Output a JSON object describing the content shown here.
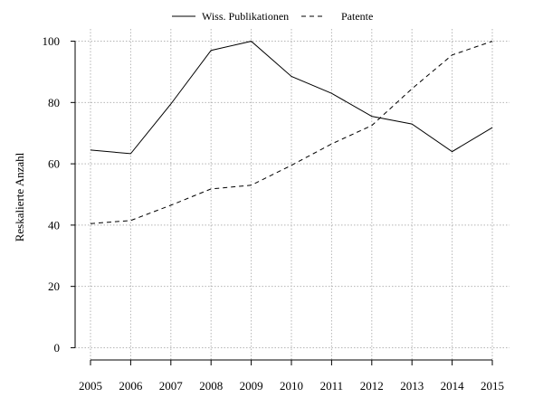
{
  "chart_data": {
    "type": "line",
    "title": "",
    "xlabel": "",
    "ylabel": "Reskalierte Anzahl",
    "categories": [
      "2005",
      "2006",
      "2007",
      "2008",
      "2009",
      "2010",
      "2011",
      "2012",
      "2013",
      "2014",
      "2015"
    ],
    "ylim": [
      -4,
      104
    ],
    "yticks": [
      0,
      20,
      40,
      60,
      80,
      100
    ],
    "grid": true,
    "legend_position": "top-center",
    "series": [
      {
        "name": "Wiss. Publikationen",
        "line_style": "solid",
        "values": [
          64.5,
          63.3,
          79.5,
          97.0,
          100.0,
          88.5,
          83.0,
          75.5,
          73.0,
          64.0,
          71.8
        ]
      },
      {
        "name": "Patente",
        "line_style": "dashed",
        "values": [
          40.5,
          41.5,
          46.5,
          51.8,
          53.0,
          59.5,
          66.5,
          72.5,
          84.5,
          95.5,
          100.0
        ]
      }
    ]
  }
}
